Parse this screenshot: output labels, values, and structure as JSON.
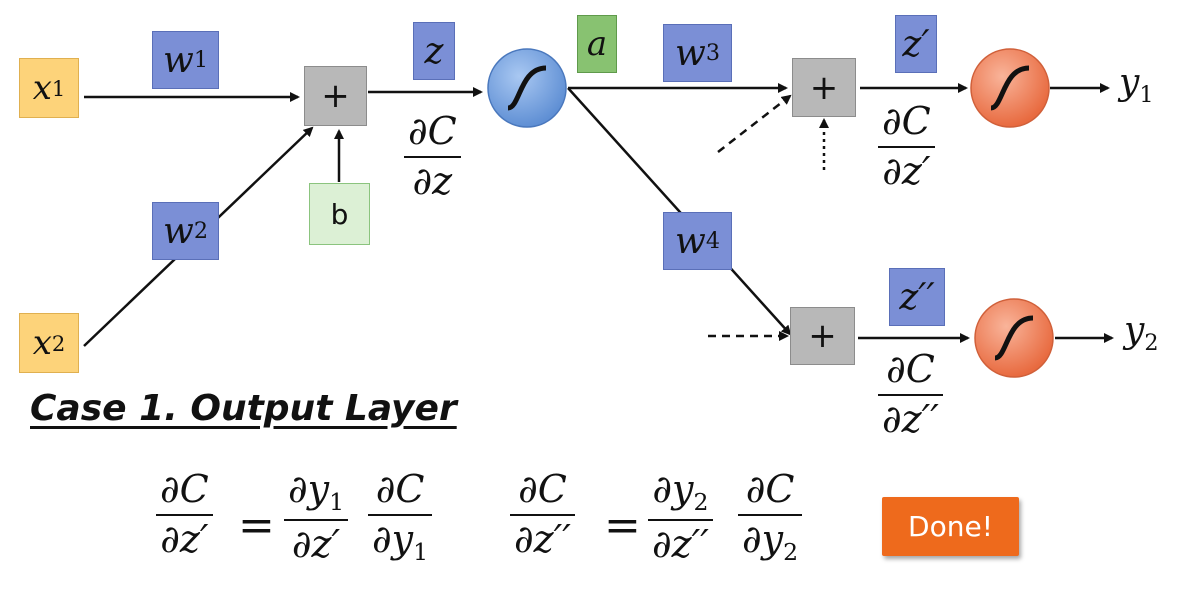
{
  "inputs": {
    "x1": "x",
    "x1_sub": "1",
    "x2": "x",
    "x2_sub": "2"
  },
  "weights": {
    "w1": "w",
    "w1_sub": "1",
    "w2": "w",
    "w2_sub": "2",
    "w3": "w",
    "w3_sub": "3",
    "w4": "w",
    "w4_sub": "4"
  },
  "labels": {
    "z": "z",
    "a": "a",
    "b": "b",
    "z_prime": "z′",
    "z_dprime": "z′′",
    "plus": "+"
  },
  "outputs": {
    "y1": "y",
    "y1_sub": "1",
    "y2": "y",
    "y2_sub": "2"
  },
  "derivatives": {
    "dC_dz": {
      "num": "∂C",
      "den": "∂z"
    },
    "dC_dzp": {
      "num": "∂C",
      "den": "∂z′"
    },
    "dC_dzpp": {
      "num": "∂C",
      "den": "∂z′′"
    }
  },
  "case_title": "Case 1. Output Layer",
  "equation1": {
    "lhs": {
      "num": "∂C",
      "den": "∂z′"
    },
    "eq": "=",
    "f1": {
      "num": "∂y",
      "num_sub": "1",
      "den": "∂z′"
    },
    "f2": {
      "num": "∂C",
      "den": "∂y",
      "den_sub": "1"
    }
  },
  "equation2": {
    "lhs": {
      "num": "∂C",
      "den": "∂z′′"
    },
    "eq": "=",
    "f1": {
      "num": "∂y",
      "num_sub": "2",
      "den": "∂z′′"
    },
    "f2": {
      "num": "∂C",
      "den": "∂y",
      "den_sub": "2"
    }
  },
  "done_button": "Done!",
  "colors": {
    "input": "#fdd37a",
    "weight": "#7b8fd6",
    "activation": "#88c271",
    "bias": "#dcf0d5",
    "sum": "#b8b8b8",
    "hidden_neuron": "#7aa6e0",
    "output_neuron": "#f08a62",
    "done": "#ee6a1c"
  }
}
